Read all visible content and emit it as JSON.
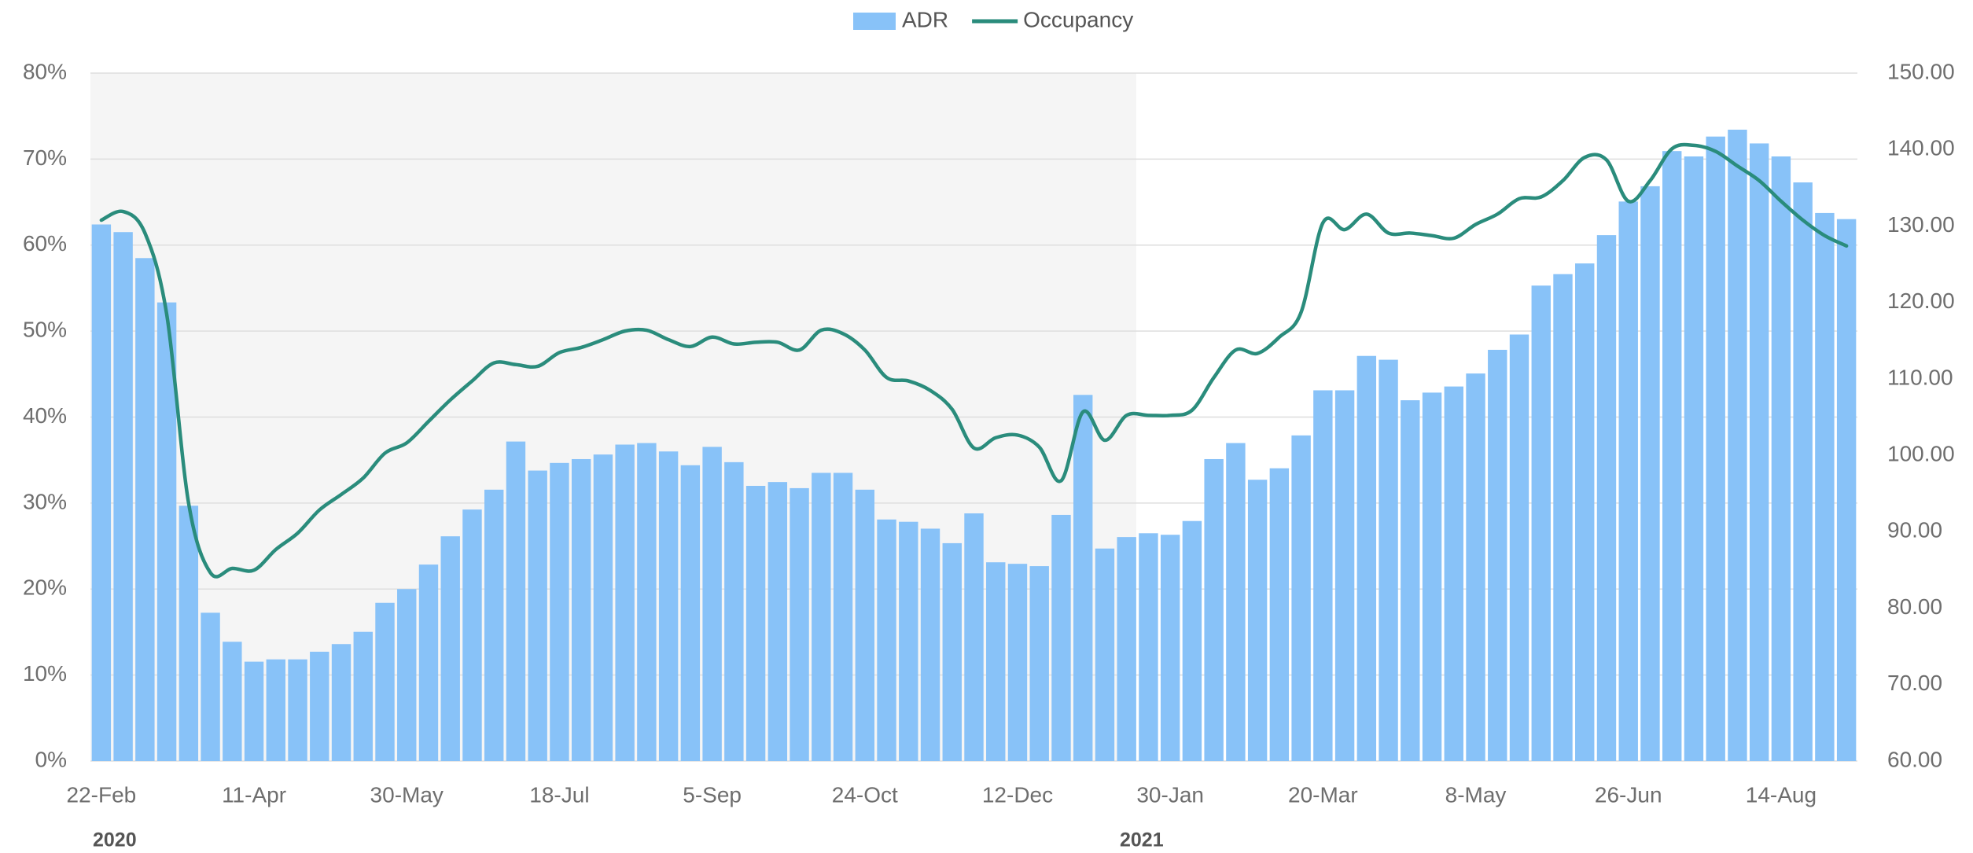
{
  "chart_data": {
    "type": "bar-line",
    "categories": [
      "22-Feb",
      null,
      null,
      null,
      null,
      null,
      null,
      "11-Apr",
      null,
      null,
      null,
      null,
      null,
      null,
      "30-May",
      null,
      null,
      null,
      null,
      null,
      null,
      "18-Jul",
      null,
      null,
      null,
      null,
      null,
      null,
      "5-Sep",
      null,
      null,
      null,
      null,
      null,
      null,
      "24-Oct",
      null,
      null,
      null,
      null,
      null,
      null,
      "12-Dec",
      null,
      null,
      null,
      null,
      null,
      null,
      "30-Jan",
      null,
      null,
      null,
      null,
      null,
      null,
      "20-Mar",
      null,
      null,
      null,
      null,
      null,
      null,
      "8-May",
      null,
      null,
      null,
      null,
      null,
      null,
      "26-Jun",
      null,
      null,
      null,
      null,
      null,
      null,
      "14-Aug",
      null,
      null,
      null
    ],
    "year_labels": [
      "2020",
      "2021"
    ],
    "series": [
      {
        "name": "ADR",
        "type": "bar",
        "axis": "y2",
        "color": "#88c2f8",
        "values": [
          130.2,
          129.2,
          125.8,
          120.0,
          93.4,
          79.4,
          75.6,
          73.0,
          73.3,
          73.3,
          74.3,
          75.3,
          76.9,
          80.7,
          82.5,
          85.7,
          89.4,
          92.9,
          95.5,
          101.8,
          98.0,
          99.0,
          99.5,
          100.1,
          101.4,
          101.6,
          100.5,
          98.7,
          101.1,
          99.1,
          96.0,
          96.5,
          95.7,
          97.7,
          97.7,
          95.5,
          91.6,
          91.3,
          90.4,
          88.5,
          92.4,
          86.0,
          85.8,
          85.5,
          92.2,
          107.9,
          87.8,
          89.3,
          89.8,
          89.6,
          91.4,
          99.5,
          101.6,
          96.8,
          98.3,
          102.6,
          108.5,
          108.5,
          113.0,
          112.5,
          107.2,
          108.2,
          109.0,
          110.7,
          113.8,
          115.8,
          122.2,
          123.7,
          125.1,
          128.8,
          133.2,
          135.2,
          139.8,
          139.1,
          141.7,
          142.6,
          140.8,
          139.1,
          135.7,
          131.7,
          130.9
        ]
      },
      {
        "name": "Occupancy",
        "type": "line",
        "axis": "y",
        "color": "#2a8c7c",
        "values": [
          62.9,
          63.9,
          61.4,
          51.9,
          30.0,
          21.9,
          22.4,
          22.2,
          24.6,
          26.5,
          29.2,
          31.0,
          32.9,
          35.8,
          37.0,
          39.5,
          42.0,
          44.2,
          46.3,
          46.1,
          45.9,
          47.5,
          48.1,
          49.0,
          50.0,
          50.1,
          49.0,
          48.2,
          49.3,
          48.5,
          48.7,
          48.7,
          47.8,
          50.1,
          49.7,
          47.8,
          44.6,
          44.2,
          43.1,
          40.9,
          36.4,
          37.6,
          37.9,
          36.5,
          32.6,
          40.6,
          37.3,
          40.2,
          40.2,
          40.2,
          40.8,
          44.6,
          47.8,
          47.4,
          49.3,
          52.2,
          62.6,
          61.8,
          63.6,
          61.4,
          61.4,
          61.1,
          60.8,
          62.4,
          63.6,
          65.4,
          65.6,
          67.5,
          70.2,
          69.9,
          65.1,
          67.5,
          71.2,
          71.6,
          70.9,
          69.2,
          67.5,
          65.1,
          62.9,
          61.1,
          59.9
        ]
      }
    ],
    "ylim": [
      0,
      80
    ],
    "yticks": [
      {
        "value": 0,
        "label": "0%"
      },
      {
        "value": 10,
        "label": "10%"
      },
      {
        "value": 20,
        "label": "20%"
      },
      {
        "value": 30,
        "label": "30%"
      },
      {
        "value": 40,
        "label": "40%"
      },
      {
        "value": 50,
        "label": "50%"
      },
      {
        "value": 60,
        "label": "60%"
      },
      {
        "value": 70,
        "label": "70%"
      },
      {
        "value": 80,
        "label": "80%"
      }
    ],
    "y2lim": [
      60,
      150
    ],
    "y2ticks": [
      {
        "value": 60,
        "label": "60.00"
      },
      {
        "value": 70,
        "label": "70.00"
      },
      {
        "value": 80,
        "label": "80.00"
      },
      {
        "value": 90,
        "label": "90.00"
      },
      {
        "value": 100,
        "label": "100.00"
      },
      {
        "value": 110,
        "label": "110.00"
      },
      {
        "value": 120,
        "label": "120.00"
      },
      {
        "value": 130,
        "label": "130.00"
      },
      {
        "value": 140,
        "label": "140.00"
      },
      {
        "value": 150,
        "label": "150.00"
      }
    ],
    "grid": true,
    "legend": "top"
  }
}
